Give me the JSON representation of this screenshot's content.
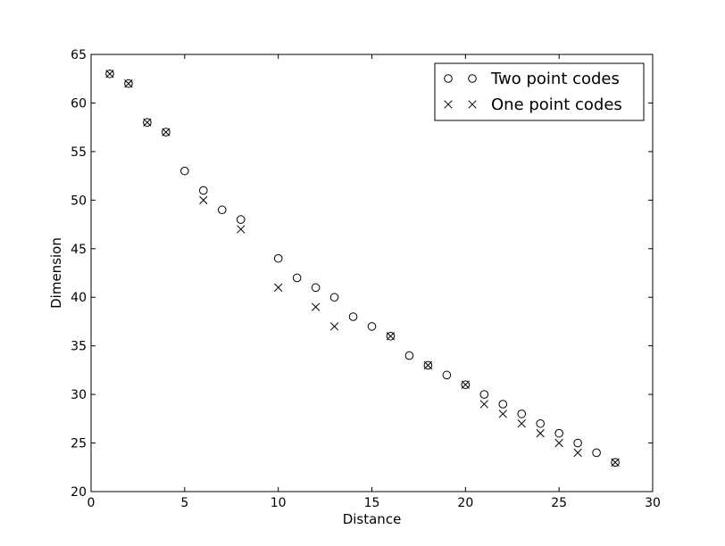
{
  "chart_data": {
    "type": "scatter",
    "title": "",
    "xlabel": "Distance",
    "ylabel": "Dimension",
    "xlim": [
      0,
      30
    ],
    "ylim": [
      20,
      65
    ],
    "xticks": [
      "0",
      "5",
      "10",
      "15",
      "20",
      "25",
      "30"
    ],
    "yticks": [
      "20",
      "25",
      "30",
      "35",
      "40",
      "45",
      "50",
      "55",
      "60",
      "65"
    ],
    "grid": false,
    "legend_position": "top-right",
    "series": [
      {
        "name": "Two point codes",
        "marker": "circle",
        "color": "#000000",
        "points": [
          [
            1,
            63
          ],
          [
            2,
            62
          ],
          [
            3,
            58
          ],
          [
            4,
            57
          ],
          [
            5,
            53
          ],
          [
            6,
            51
          ],
          [
            7,
            49
          ],
          [
            8,
            48
          ],
          [
            10,
            44
          ],
          [
            11,
            42
          ],
          [
            12,
            41
          ],
          [
            13,
            40
          ],
          [
            14,
            38
          ],
          [
            15,
            37
          ],
          [
            16,
            36
          ],
          [
            17,
            34
          ],
          [
            18,
            33
          ],
          [
            19,
            32
          ],
          [
            20,
            31
          ],
          [
            21,
            30
          ],
          [
            22,
            29
          ],
          [
            23,
            28
          ],
          [
            24,
            27
          ],
          [
            25,
            26
          ],
          [
            26,
            25
          ],
          [
            27,
            24
          ],
          [
            28,
            23
          ]
        ]
      },
      {
        "name": "One point codes",
        "marker": "x",
        "color": "#000000",
        "points": [
          [
            1,
            63
          ],
          [
            2,
            62
          ],
          [
            3,
            58
          ],
          [
            4,
            57
          ],
          [
            6,
            50
          ],
          [
            8,
            47
          ],
          [
            10,
            41
          ],
          [
            12,
            39
          ],
          [
            13,
            37
          ],
          [
            16,
            36
          ],
          [
            18,
            33
          ],
          [
            20,
            31
          ],
          [
            21,
            29
          ],
          [
            22,
            28
          ],
          [
            23,
            27
          ],
          [
            24,
            26
          ],
          [
            25,
            25
          ],
          [
            26,
            24
          ],
          [
            28,
            23
          ]
        ]
      }
    ]
  }
}
